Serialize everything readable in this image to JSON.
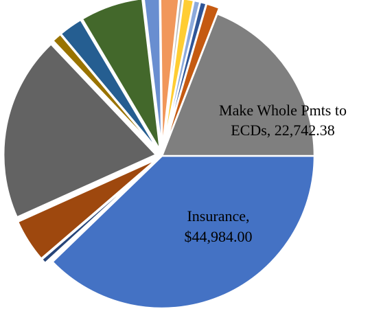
{
  "chart_data": {
    "type": "pie",
    "title": "",
    "slices": [
      {
        "label": "Insurance",
        "value": 44984.0,
        "color": "#4472C4",
        "data_label": [
          "Insurance,",
          "$44,984.00"
        ],
        "exploded": false
      },
      {
        "label": "",
        "value": 495,
        "color": "#FFFFFF",
        "exploded": false
      },
      {
        "label": "",
        "value": 605,
        "color": "#264478",
        "exploded": true
      },
      {
        "label": "",
        "value": 5450,
        "color": "#9E480E",
        "exploded": true
      },
      {
        "label": "",
        "value": 23400,
        "color": "#636363",
        "exploded": true
      },
      {
        "label": "",
        "value": 1210,
        "color": "#997300",
        "exploded": true
      },
      {
        "label": "",
        "value": 3030,
        "color": "#255E91",
        "exploded": true
      },
      {
        "label": "",
        "value": 7940,
        "color": "#43682B",
        "exploded": true
      },
      {
        "label": "",
        "value": 1980,
        "color": "#698ED0",
        "exploded": true
      },
      {
        "label": "",
        "value": 2320,
        "color": "#F1975A",
        "exploded": true
      },
      {
        "label": "",
        "value": 440,
        "color": "#B7B7B7",
        "exploded": true
      },
      {
        "label": "",
        "value": 1320,
        "color": "#FFCD33",
        "exploded": true
      },
      {
        "label": "",
        "value": 770,
        "color": "#8CAADC",
        "exploded": true
      },
      {
        "label": "",
        "value": 770,
        "color": "#2F5597",
        "exploded": true
      },
      {
        "label": "",
        "value": 1650,
        "color": "#C55A11",
        "exploded": true
      },
      {
        "label": "Make Whole Pmts to ECDs",
        "value": 22742.38,
        "color": "#7F7F7F",
        "data_label": [
          "Make Whole Pmts to",
          "ECDs, 22,742.38"
        ],
        "exploded": false
      }
    ]
  }
}
